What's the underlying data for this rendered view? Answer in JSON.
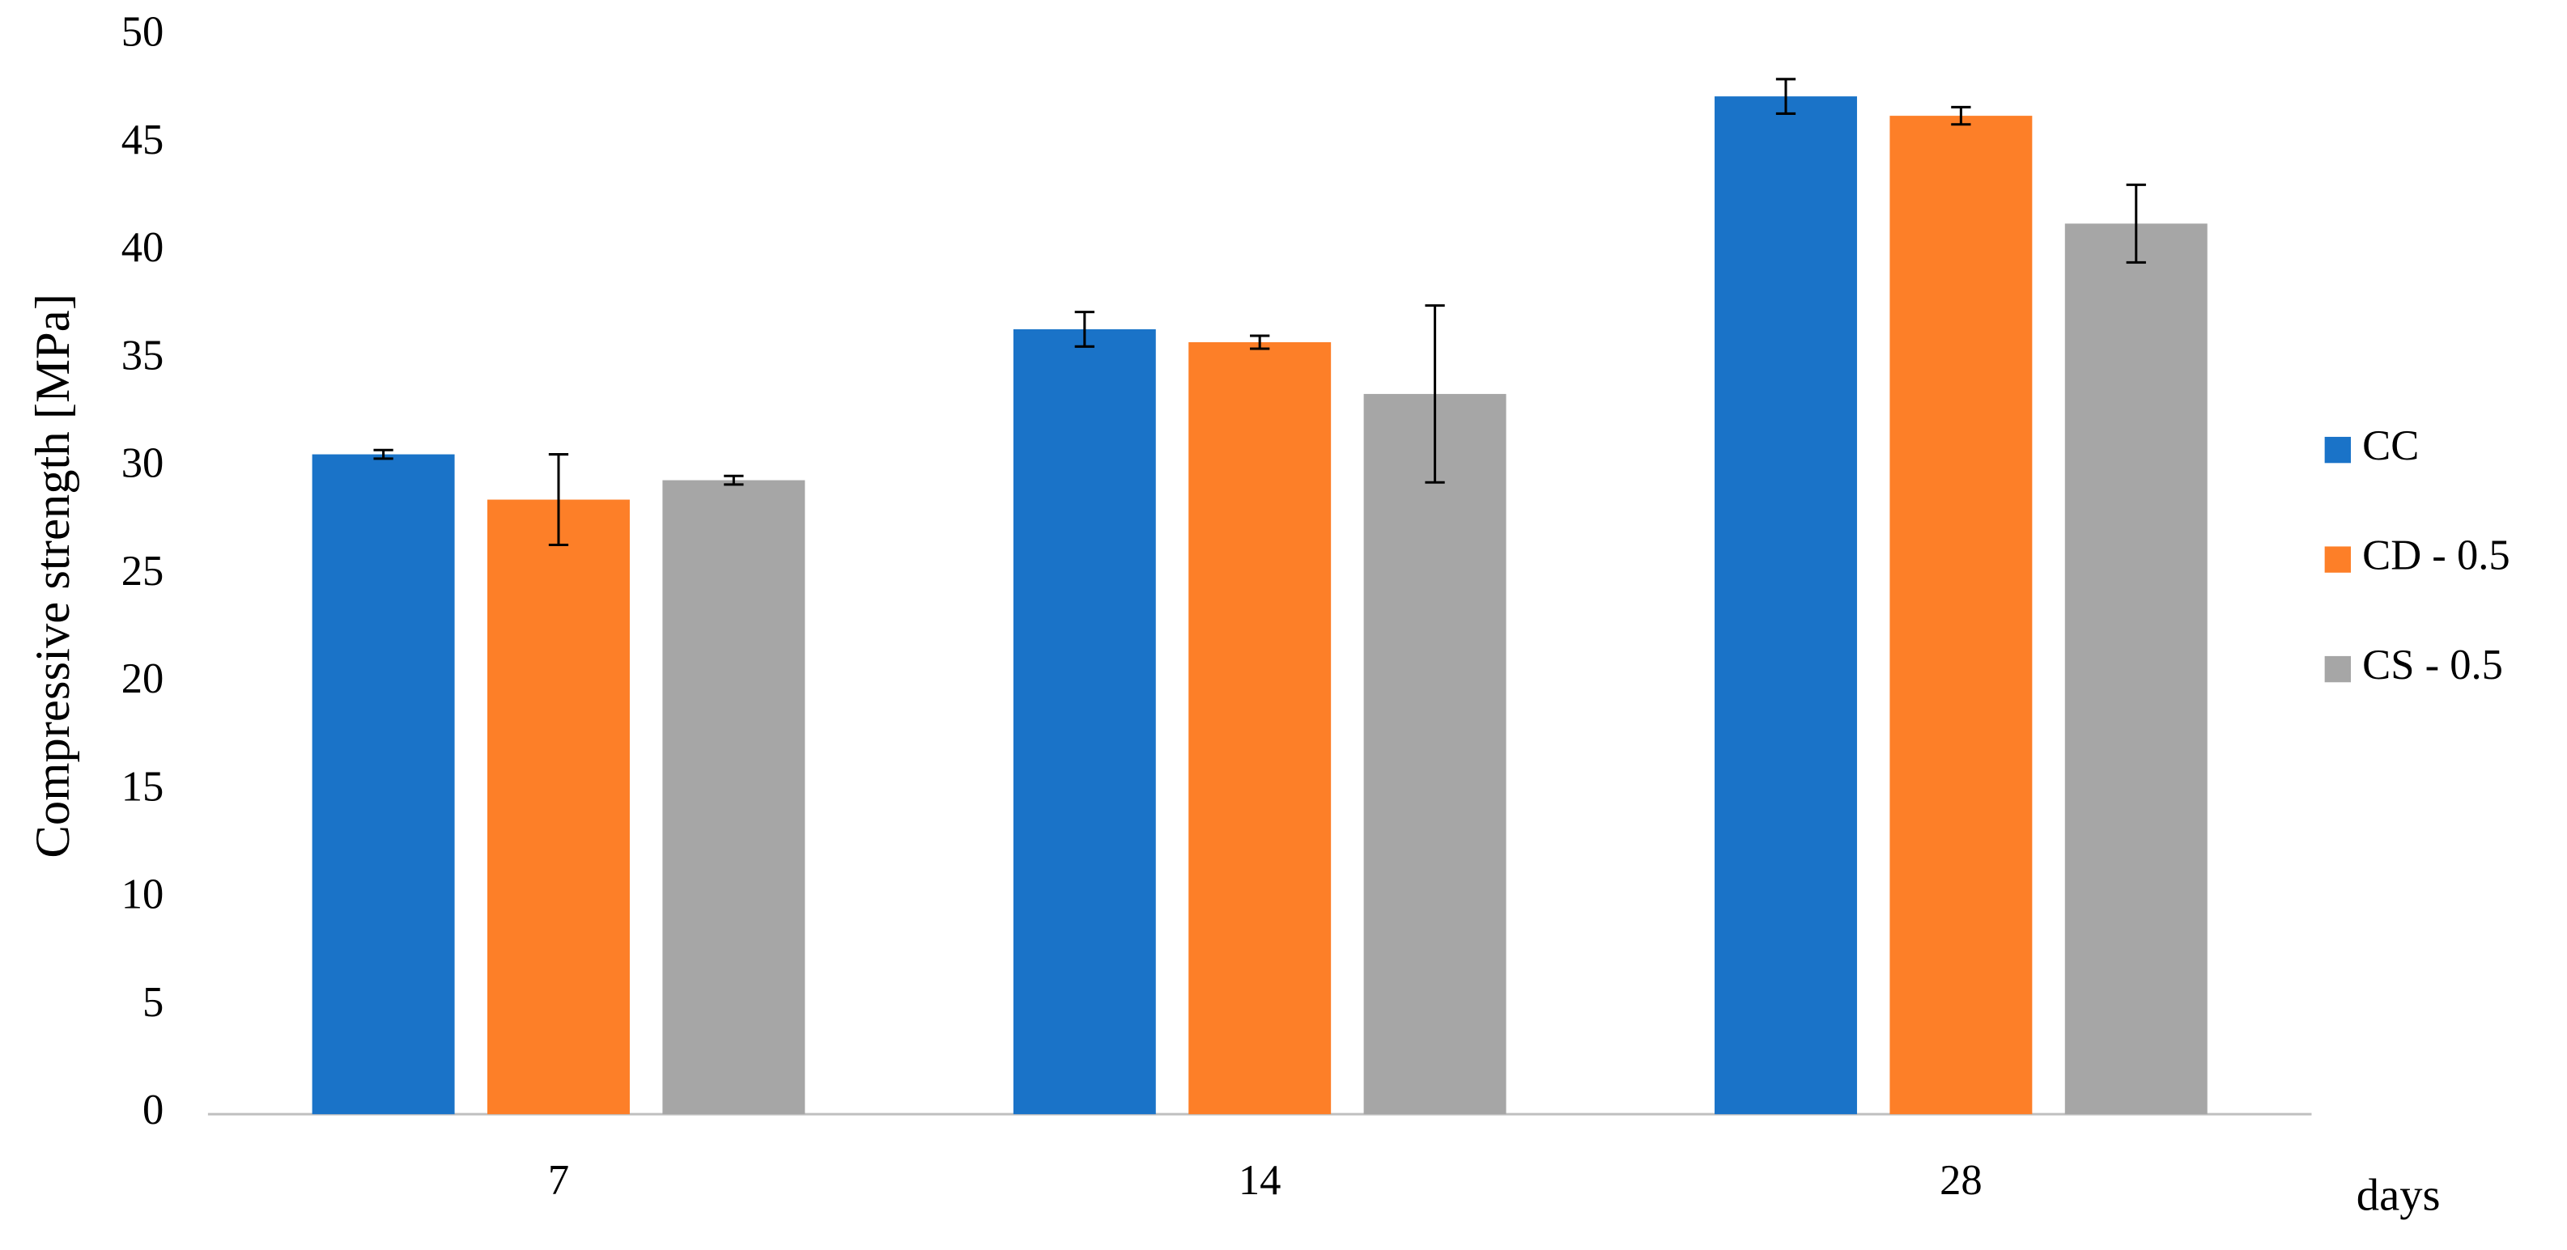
{
  "chart_data": {
    "type": "bar",
    "y_label": "Compressive strength [MPa]",
    "x_label": "days",
    "categories": [
      "7",
      "14",
      "28"
    ],
    "series": [
      {
        "name": "CC",
        "color": "#1a73c8",
        "values": [
          30.6,
          36.4,
          47.2
        ],
        "errors": [
          0.2,
          0.8,
          0.8
        ]
      },
      {
        "name": "CD - 0.5",
        "color": "#fd7f28",
        "values": [
          28.5,
          35.8,
          46.3
        ],
        "errors": [
          2.1,
          0.3,
          0.4
        ]
      },
      {
        "name": "CS - 0.5",
        "color": "#a6a6a6",
        "values": [
          29.4,
          33.4,
          41.3
        ],
        "errors": [
          0.2,
          4.1,
          1.8
        ]
      }
    ],
    "ylim": [
      0,
      50
    ],
    "yticks": [
      0,
      5,
      10,
      15,
      20,
      25,
      30,
      35,
      40,
      45,
      50
    ],
    "grid": false,
    "legend": "right"
  }
}
